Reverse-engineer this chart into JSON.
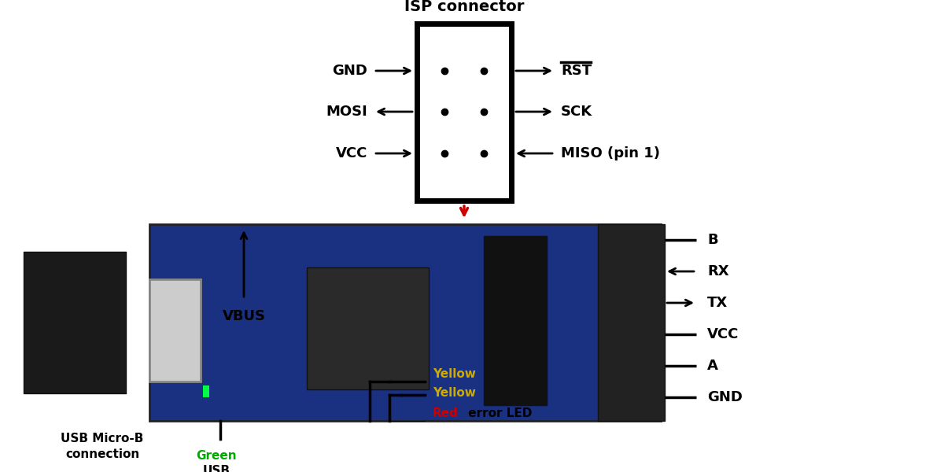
{
  "bg": "#ffffff",
  "board_color": "#1a3080",
  "isp_label": "ISP connector",
  "isp_left_pins": [
    {
      "label": "GND",
      "arrow": "right"
    },
    {
      "label": "MOSI",
      "arrow": "left"
    },
    {
      "label": "VCC",
      "arrow": "right"
    }
  ],
  "isp_right_pins": [
    {
      "label": "RST",
      "arrow": "right",
      "overline": true
    },
    {
      "label": "SCK",
      "arrow": "right",
      "overline": false
    },
    {
      "label": "MISO (pin 1)",
      "arrow": "left",
      "overline": false
    }
  ],
  "serial_pins": [
    {
      "label": "B",
      "arrow": "none"
    },
    {
      "label": "RX",
      "arrow": "left"
    },
    {
      "label": "TX",
      "arrow": "right"
    },
    {
      "label": "VCC",
      "arrow": "none"
    },
    {
      "label": "A",
      "arrow": "none"
    },
    {
      "label": "GND",
      "arrow": "none"
    }
  ],
  "colors": {
    "black": "#000000",
    "green": "#00aa00",
    "yellow": "#ccaa00",
    "red": "#cc0000",
    "board": "#1a3080",
    "dark": "#111111",
    "silver": "#cccccc",
    "gray": "#444444"
  }
}
